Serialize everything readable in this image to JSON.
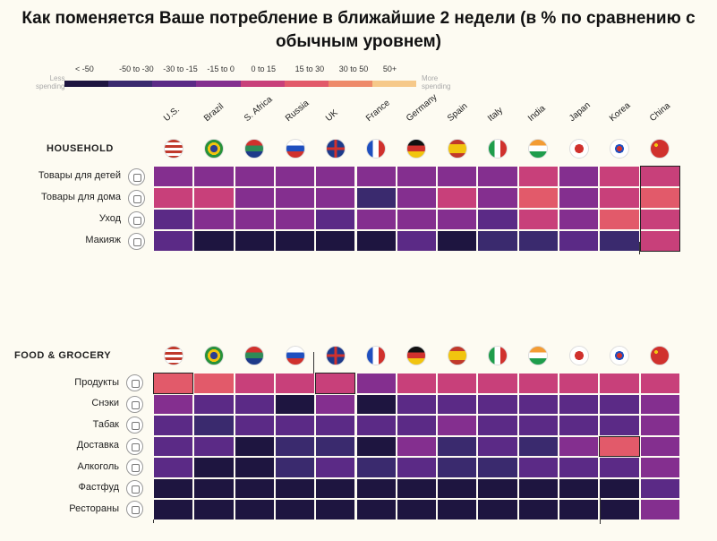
{
  "title": "Как поменяется Ваше потребление в ближайшие 2 недели (в % по сравнению с обычным уровнем)",
  "legend": {
    "less": [
      "Less",
      "spending"
    ],
    "more": [
      "More",
      "spending"
    ],
    "bins": [
      {
        "label": "< -50",
        "color": "#1e1540"
      },
      {
        "label": "-50 to -30",
        "color": "#3a2a6e"
      },
      {
        "label": "-30 to -15",
        "color": "#5b2a86"
      },
      {
        "label": "-15 to 0",
        "color": "#842f8f"
      },
      {
        "label": "0 to 15",
        "color": "#c8407a"
      },
      {
        "label": "15 to 30",
        "color": "#e25a6a"
      },
      {
        "label": "30 to 50",
        "color": "#ee8a6a"
      },
      {
        "label": "50+",
        "color": "#f6c98a"
      }
    ]
  },
  "countries": [
    "U.S.",
    "Brazil",
    "S. Africa",
    "Russia",
    "UK",
    "France",
    "Germany",
    "Spain",
    "Italy",
    "India",
    "Japan",
    "Korea",
    "China"
  ],
  "chart_data": [
    {
      "type": "heatmap",
      "title": "HOUSEHOLD",
      "rows": [
        "Товары для детей",
        "Товары для дома",
        "Уход",
        "Макияж"
      ],
      "columns": [
        "U.S.",
        "Brazil",
        "S. Africa",
        "Russia",
        "UK",
        "France",
        "Germany",
        "Spain",
        "Italy",
        "India",
        "Japan",
        "Korea",
        "China"
      ],
      "values": [
        [
          "-15 to 0",
          "-15 to 0",
          "-15 to 0",
          "-15 to 0",
          "-15 to 0",
          "-15 to 0",
          "-15 to 0",
          "-15 to 0",
          "-15 to 0",
          "0 to 15",
          "-15 to 0",
          "0 to 15",
          "0 to 15"
        ],
        [
          "0 to 15",
          "0 to 15",
          "-15 to 0",
          "-15 to 0",
          "-15 to 0",
          "-50 to -30",
          "-15 to 0",
          "0 to 15",
          "-15 to 0",
          "15 to 30",
          "-15 to 0",
          "0 to 15",
          "15 to 30"
        ],
        [
          "-30 to -15",
          "-15 to 0",
          "-15 to 0",
          "-15 to 0",
          "-30 to -15",
          "-15 to 0",
          "-15 to 0",
          "-15 to 0",
          "-30 to -15",
          "0 to 15",
          "-15 to 0",
          "15 to 30",
          "0 to 15"
        ],
        [
          "-30 to -15",
          "< -50",
          "< -50",
          "< -50",
          "< -50",
          "< -50",
          "-30 to -15",
          "< -50",
          "-50 to -30",
          "-50 to -30",
          "-30 to -15",
          "-50 to -30",
          "0 to 15"
        ]
      ],
      "highlight_columns": [
        "China"
      ]
    },
    {
      "type": "heatmap",
      "title": "FOOD & GROCERY",
      "rows": [
        "Продукты",
        "Снэки",
        "Табак",
        "Доставка",
        "Алкоголь",
        "Фастфуд",
        "Рестораны"
      ],
      "columns": [
        "U.S.",
        "Brazil",
        "S. Africa",
        "Russia",
        "UK",
        "France",
        "Germany",
        "Spain",
        "Italy",
        "India",
        "Japan",
        "Korea",
        "China"
      ],
      "values": [
        [
          "15 to 30",
          "15 to 30",
          "0 to 15",
          "0 to 15",
          "0 to 15",
          "-15 to 0",
          "0 to 15",
          "0 to 15",
          "0 to 15",
          "0 to 15",
          "0 to 15",
          "0 to 15",
          "0 to 15"
        ],
        [
          "-15 to 0",
          "-30 to -15",
          "-30 to -15",
          "< -50",
          "-15 to 0",
          "< -50",
          "-30 to -15",
          "-30 to -15",
          "-30 to -15",
          "-30 to -15",
          "-30 to -15",
          "-30 to -15",
          "-15 to 0"
        ],
        [
          "-30 to -15",
          "-50 to -30",
          "-30 to -15",
          "-30 to -15",
          "-30 to -15",
          "-30 to -15",
          "-30 to -15",
          "-15 to 0",
          "-30 to -15",
          "-30 to -15",
          "-30 to -15",
          "-30 to -15",
          "-15 to 0"
        ],
        [
          "-30 to -15",
          "-30 to -15",
          "< -50",
          "-50 to -30",
          "-50 to -30",
          "< -50",
          "-15 to 0",
          "-50 to -30",
          "-30 to -15",
          "-50 to -30",
          "-15 to 0",
          "15 to 30",
          "-15 to 0"
        ],
        [
          "-30 to -15",
          "< -50",
          "< -50",
          "-50 to -30",
          "-30 to -15",
          "-50 to -30",
          "-30 to -15",
          "-50 to -30",
          "-50 to -30",
          "-30 to -15",
          "-30 to -15",
          "-30 to -15",
          "-15 to 0"
        ],
        [
          "< -50",
          "< -50",
          "< -50",
          "< -50",
          "< -50",
          "< -50",
          "< -50",
          "< -50",
          "< -50",
          "< -50",
          "< -50",
          "< -50",
          "-30 to -15"
        ],
        [
          "< -50",
          "< -50",
          "< -50",
          "< -50",
          "< -50",
          "< -50",
          "< -50",
          "< -50",
          "< -50",
          "< -50",
          "< -50",
          "< -50",
          "-15 to 0"
        ]
      ],
      "highlight_cells": [
        [
          "Продукты",
          "U.S."
        ],
        [
          "Продукты",
          "UK"
        ],
        [
          "Доставка",
          "Korea"
        ]
      ]
    }
  ]
}
